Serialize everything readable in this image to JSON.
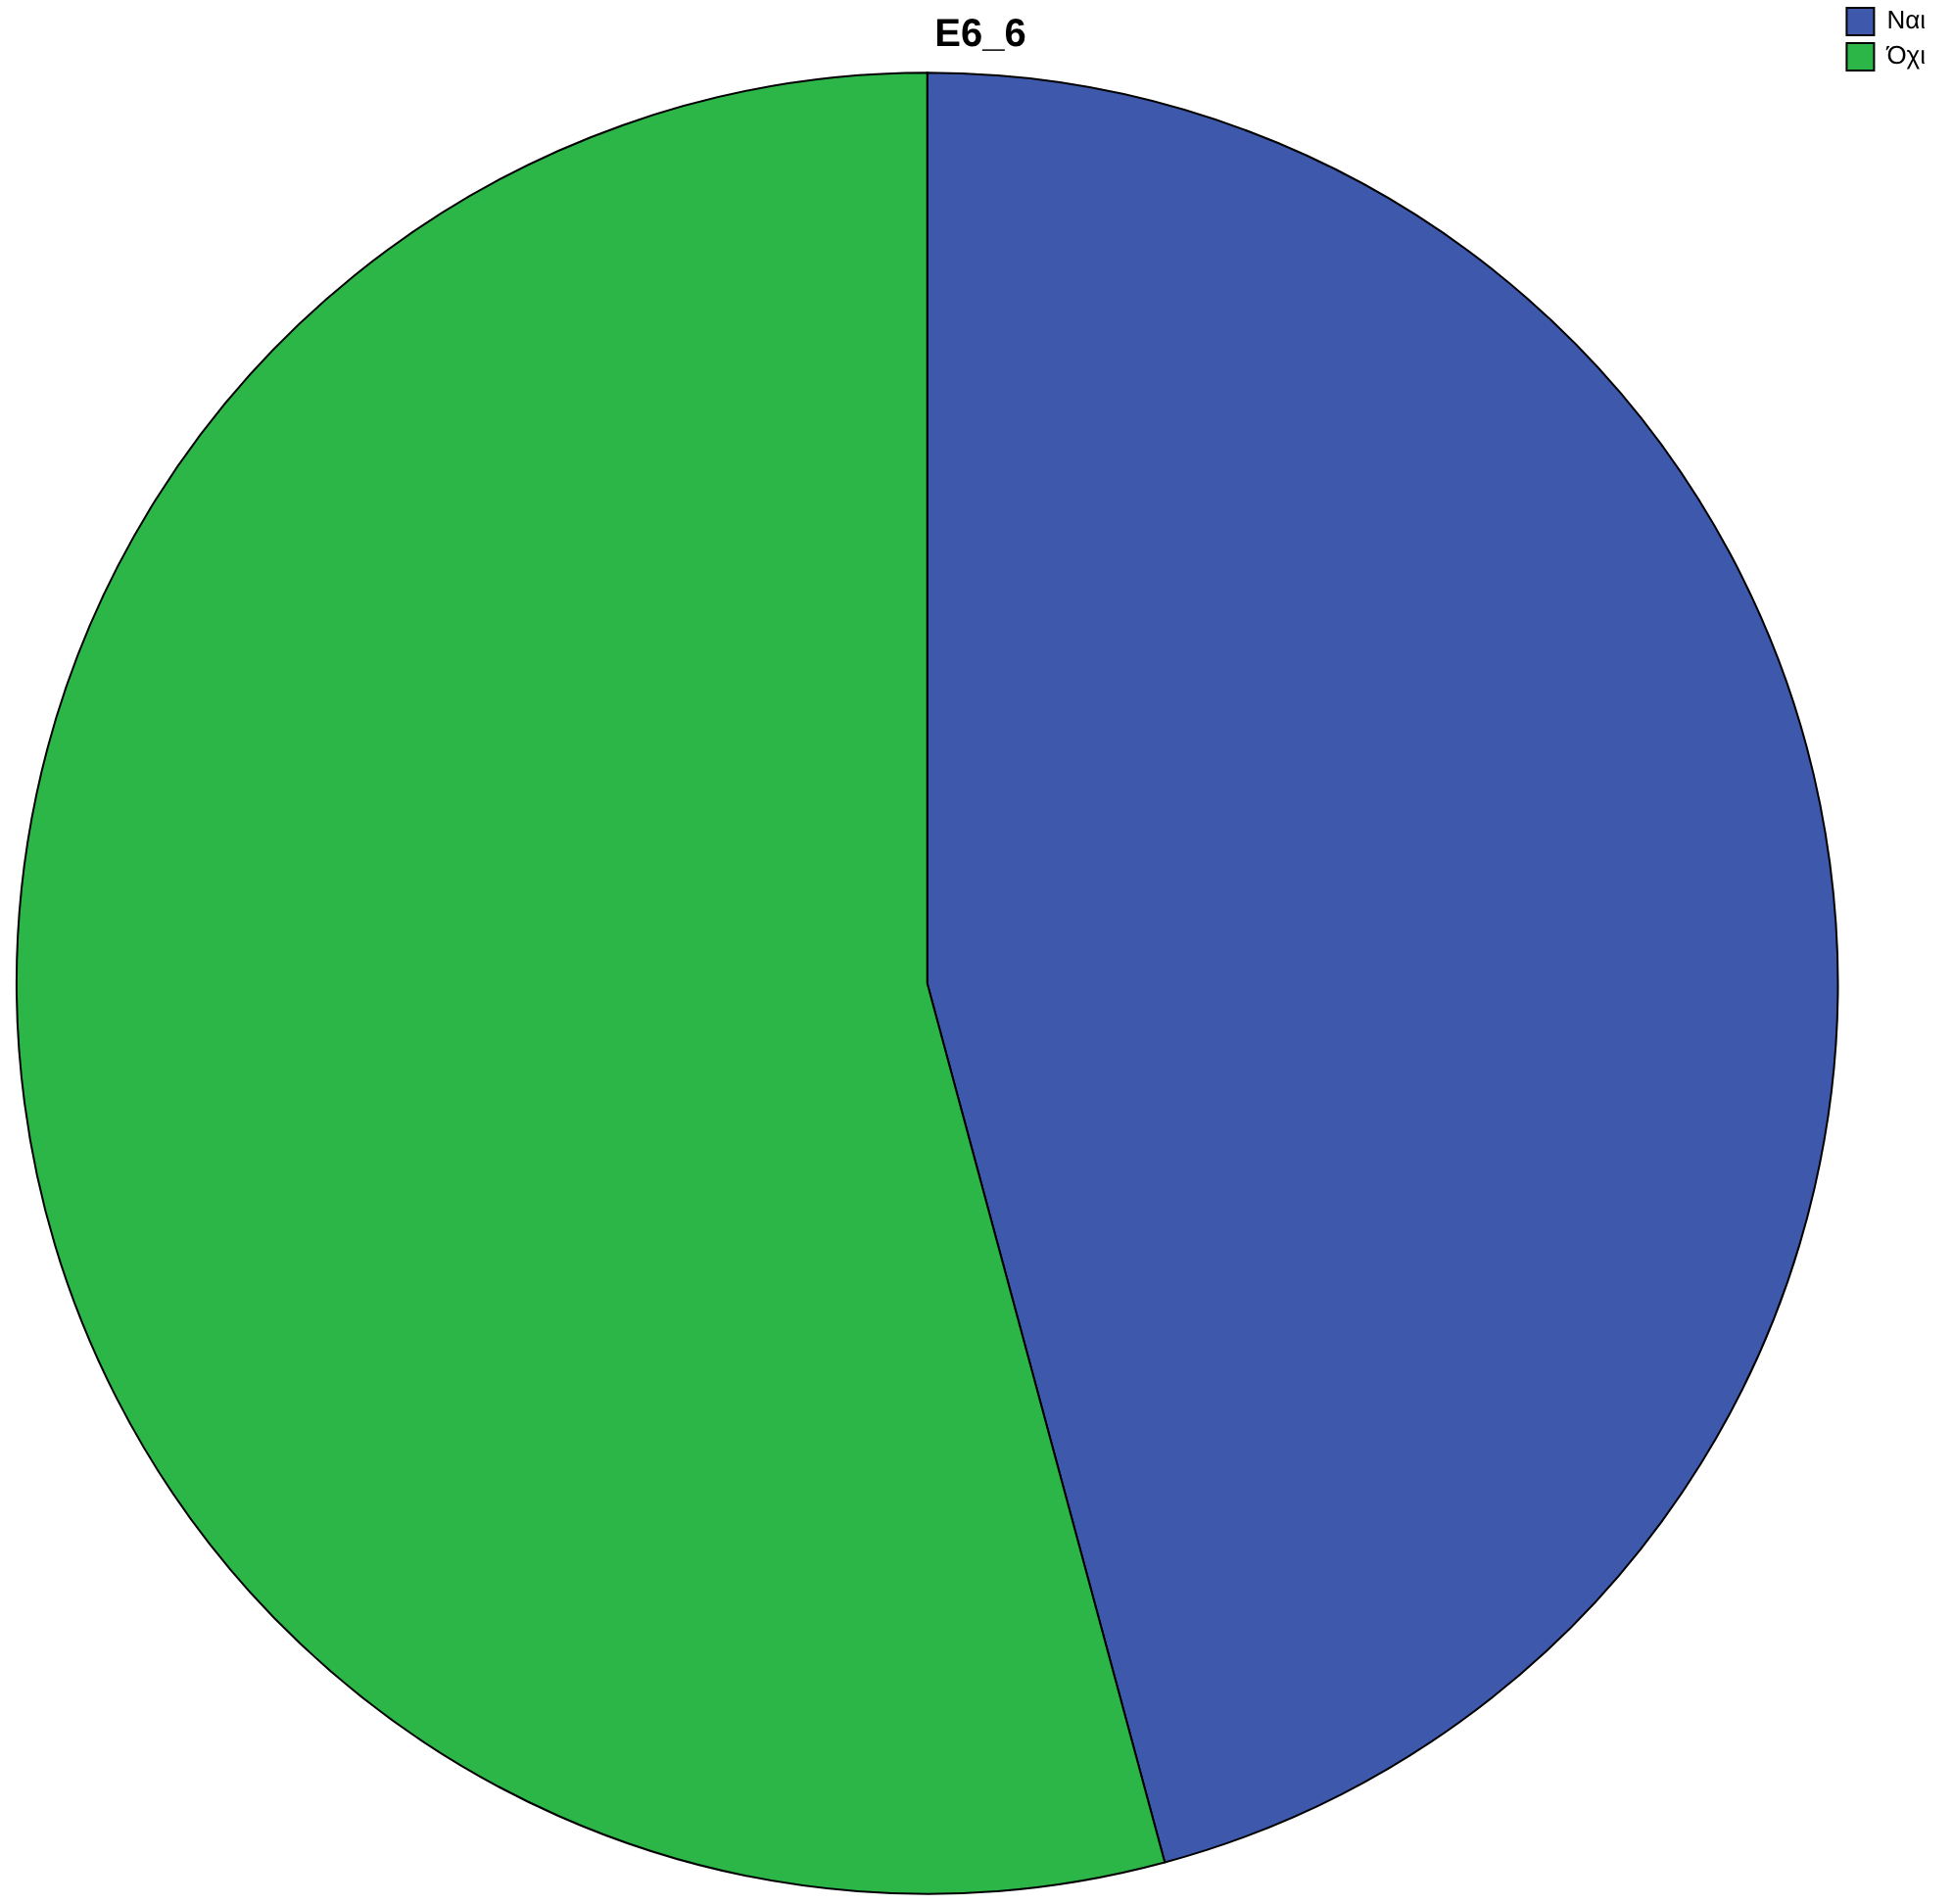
{
  "chart_data": {
    "type": "pie",
    "title": "E6_6",
    "categories": [
      "Ναι",
      "Όχι"
    ],
    "values": [
      45.8,
      54.2
    ],
    "colors": [
      "#3e58ac",
      "#2db648"
    ],
    "legend": "top right"
  }
}
